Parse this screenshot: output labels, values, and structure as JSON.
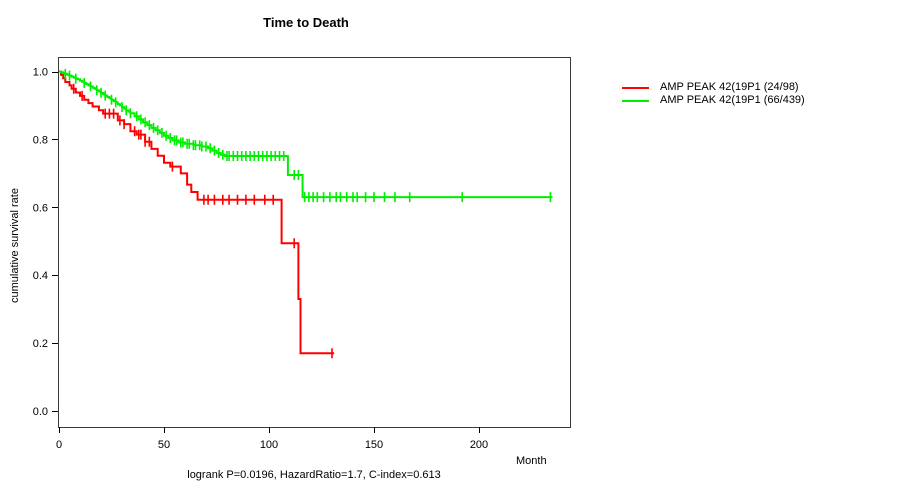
{
  "chart_data": {
    "type": "line",
    "subtype": "kaplan-meier-step",
    "title": "Time to Death",
    "xlabel": "Month",
    "ylabel": "cumulative survival rate",
    "footer": "logrank P=0.0196, HazardRatio=1.7, C-index=0.613",
    "xlim": [
      0,
      243
    ],
    "ylim": [
      0.0,
      1.0
    ],
    "x_ticks": [
      {
        "v": 0,
        "label": "0"
      },
      {
        "v": 50,
        "label": "50"
      },
      {
        "v": 100,
        "label": "100"
      },
      {
        "v": 150,
        "label": "150"
      },
      {
        "v": 200,
        "label": "200"
      }
    ],
    "y_ticks": [
      {
        "v": 0.0,
        "label": "0.0"
      },
      {
        "v": 0.2,
        "label": "0.2"
      },
      {
        "v": 0.4,
        "label": "0.4"
      },
      {
        "v": 0.6,
        "label": "0.6"
      },
      {
        "v": 0.8,
        "label": "0.8"
      },
      {
        "v": 1.0,
        "label": "1.0"
      }
    ],
    "grid": false,
    "legend_position": "right-outside",
    "series": [
      {
        "name": "AMP PEAK 42(19P1 (24/98)",
        "color": "#ff0000",
        "end_month": 131,
        "steps": [
          [
            0,
            1.0
          ],
          [
            1,
            0.99
          ],
          [
            2,
            0.98
          ],
          [
            3,
            0.969
          ],
          [
            5,
            0.959
          ],
          [
            6,
            0.949
          ],
          [
            8,
            0.938
          ],
          [
            10,
            0.928
          ],
          [
            12,
            0.917
          ],
          [
            14,
            0.907
          ],
          [
            16,
            0.897
          ],
          [
            19,
            0.886
          ],
          [
            21,
            0.876
          ],
          [
            28,
            0.856
          ],
          [
            31,
            0.845
          ],
          [
            34,
            0.824
          ],
          [
            37,
            0.814
          ],
          [
            41,
            0.793
          ],
          [
            44,
            0.772
          ],
          [
            47,
            0.752
          ],
          [
            50,
            0.731
          ],
          [
            53,
            0.72
          ],
          [
            58,
            0.7
          ],
          [
            61,
            0.667
          ],
          [
            63,
            0.645
          ],
          [
            66,
            0.622
          ],
          [
            106,
            0.494
          ],
          [
            114,
            0.33
          ],
          [
            115,
            0.17
          ]
        ],
        "censor_months": [
          7,
          11,
          22,
          24,
          26,
          29,
          31,
          36,
          38,
          39,
          41,
          43,
          54,
          69,
          71,
          74,
          78,
          81,
          85,
          89,
          93,
          98,
          102,
          112,
          130
        ]
      },
      {
        "name": "AMP PEAK 42(19P1 (66/439)",
        "color": "#00ef00",
        "end_month": 235,
        "steps": [
          [
            0,
            1.0
          ],
          [
            1,
            0.998
          ],
          [
            2,
            0.995
          ],
          [
            3,
            0.993
          ],
          [
            4,
            0.99
          ],
          [
            5,
            0.988
          ],
          [
            6,
            0.985
          ],
          [
            7,
            0.982
          ],
          [
            8,
            0.979
          ],
          [
            9,
            0.977
          ],
          [
            10,
            0.973
          ],
          [
            11,
            0.97
          ],
          [
            12,
            0.966
          ],
          [
            13,
            0.963
          ],
          [
            14,
            0.959
          ],
          [
            15,
            0.956
          ],
          [
            16,
            0.952
          ],
          [
            17,
            0.949
          ],
          [
            18,
            0.945
          ],
          [
            19,
            0.941
          ],
          [
            20,
            0.937
          ],
          [
            21,
            0.933
          ],
          [
            22,
            0.929
          ],
          [
            23,
            0.925
          ],
          [
            24,
            0.921
          ],
          [
            25,
            0.917
          ],
          [
            26,
            0.913
          ],
          [
            27,
            0.909
          ],
          [
            28,
            0.904
          ],
          [
            29,
            0.9
          ],
          [
            30,
            0.895
          ],
          [
            31,
            0.891
          ],
          [
            32,
            0.886
          ],
          [
            33,
            0.882
          ],
          [
            34,
            0.877
          ],
          [
            36,
            0.868
          ],
          [
            38,
            0.859
          ],
          [
            40,
            0.85
          ],
          [
            42,
            0.842
          ],
          [
            44,
            0.834
          ],
          [
            46,
            0.827
          ],
          [
            48,
            0.819
          ],
          [
            50,
            0.811
          ],
          [
            52,
            0.804
          ],
          [
            54,
            0.797
          ],
          [
            57,
            0.791
          ],
          [
            60,
            0.787
          ],
          [
            64,
            0.783
          ],
          [
            68,
            0.779
          ],
          [
            71,
            0.774
          ],
          [
            73,
            0.767
          ],
          [
            75,
            0.76
          ],
          [
            77,
            0.755
          ],
          [
            79,
            0.751
          ],
          [
            109,
            0.695
          ],
          [
            116,
            0.63
          ]
        ],
        "censor_months": [
          3,
          5,
          8,
          12,
          15,
          18,
          20,
          22,
          25,
          27,
          30,
          32,
          34,
          37,
          39,
          41,
          43,
          45,
          47,
          49,
          51,
          53,
          55,
          56,
          58,
          59,
          61,
          62,
          64,
          65,
          67,
          68,
          70,
          72,
          74,
          76,
          78,
          80,
          81,
          83,
          85,
          87,
          89,
          91,
          93,
          95,
          97,
          99,
          101,
          103,
          105,
          107,
          112,
          114,
          117,
          119,
          121,
          123,
          126,
          129,
          132,
          134,
          137,
          140,
          142,
          146,
          150,
          155,
          160,
          167,
          192,
          234
        ]
      }
    ]
  }
}
